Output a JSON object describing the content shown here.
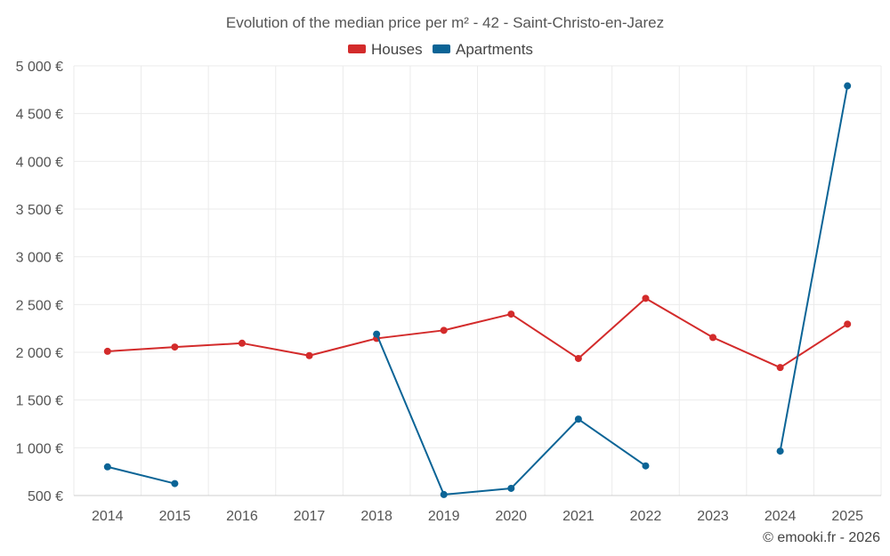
{
  "chart_data": {
    "type": "line",
    "title": "Evolution of the median price per m² - 42 - Saint-Christo-en-Jarez",
    "x": [
      "2014",
      "2015",
      "2016",
      "2017",
      "2018",
      "2019",
      "2020",
      "2021",
      "2022",
      "2023",
      "2024",
      "2025"
    ],
    "ylim": [
      500,
      5000
    ],
    "y_ticks": [
      500,
      1000,
      1500,
      2000,
      2500,
      3000,
      3500,
      4000,
      4500,
      5000
    ],
    "y_tick_labels": [
      "500 €",
      "1 000 €",
      "1 500 €",
      "2 000 €",
      "2 500 €",
      "3 000 €",
      "3 500 €",
      "4 000 €",
      "4 500 €",
      "5 000 €"
    ],
    "grid": true,
    "legend_position": "top-center",
    "series": [
      {
        "name": "Houses",
        "color": "#d32b2b",
        "values": [
          2010,
          2055,
          2095,
          1965,
          2145,
          2230,
          2400,
          1935,
          2565,
          2155,
          1840,
          2295
        ]
      },
      {
        "name": "Apartments",
        "color": "#0b6496",
        "values": [
          800,
          625,
          null,
          null,
          2190,
          510,
          575,
          1300,
          810,
          null,
          965,
          4790
        ]
      }
    ],
    "credit": "© emooki.fr - 2026"
  }
}
